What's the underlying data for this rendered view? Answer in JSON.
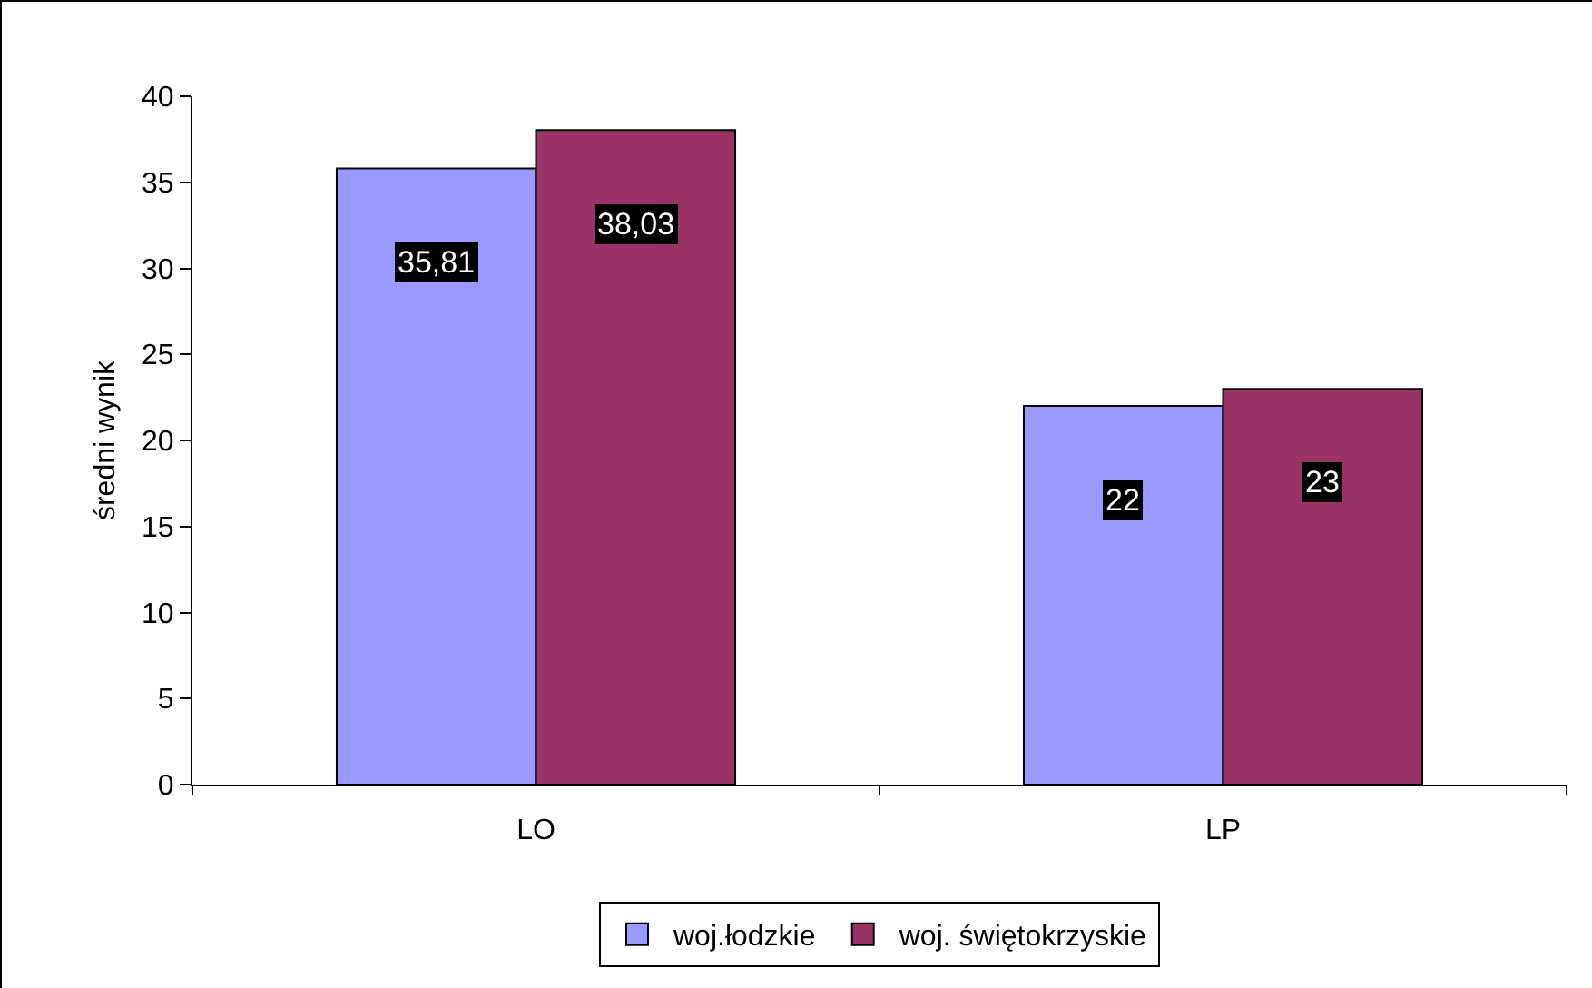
{
  "chart_data": {
    "type": "bar",
    "categories": [
      "LO",
      "LP"
    ],
    "ylabel": "średni wynik",
    "series": [
      {
        "name": "woj.łodzkie",
        "color": "#9999ff",
        "values": [
          35.81,
          22
        ],
        "value_labels": [
          "35,81",
          "22"
        ]
      },
      {
        "name": "woj. świętokrzyskie",
        "color": "#993366",
        "values": [
          38.03,
          23
        ],
        "value_labels": [
          "38,03",
          "23"
        ]
      }
    ],
    "ylim": [
      0,
      40
    ],
    "yticks": [
      0,
      5,
      10,
      15,
      20,
      25,
      30,
      35,
      40
    ],
    "grid": false,
    "legend": "bottom"
  }
}
